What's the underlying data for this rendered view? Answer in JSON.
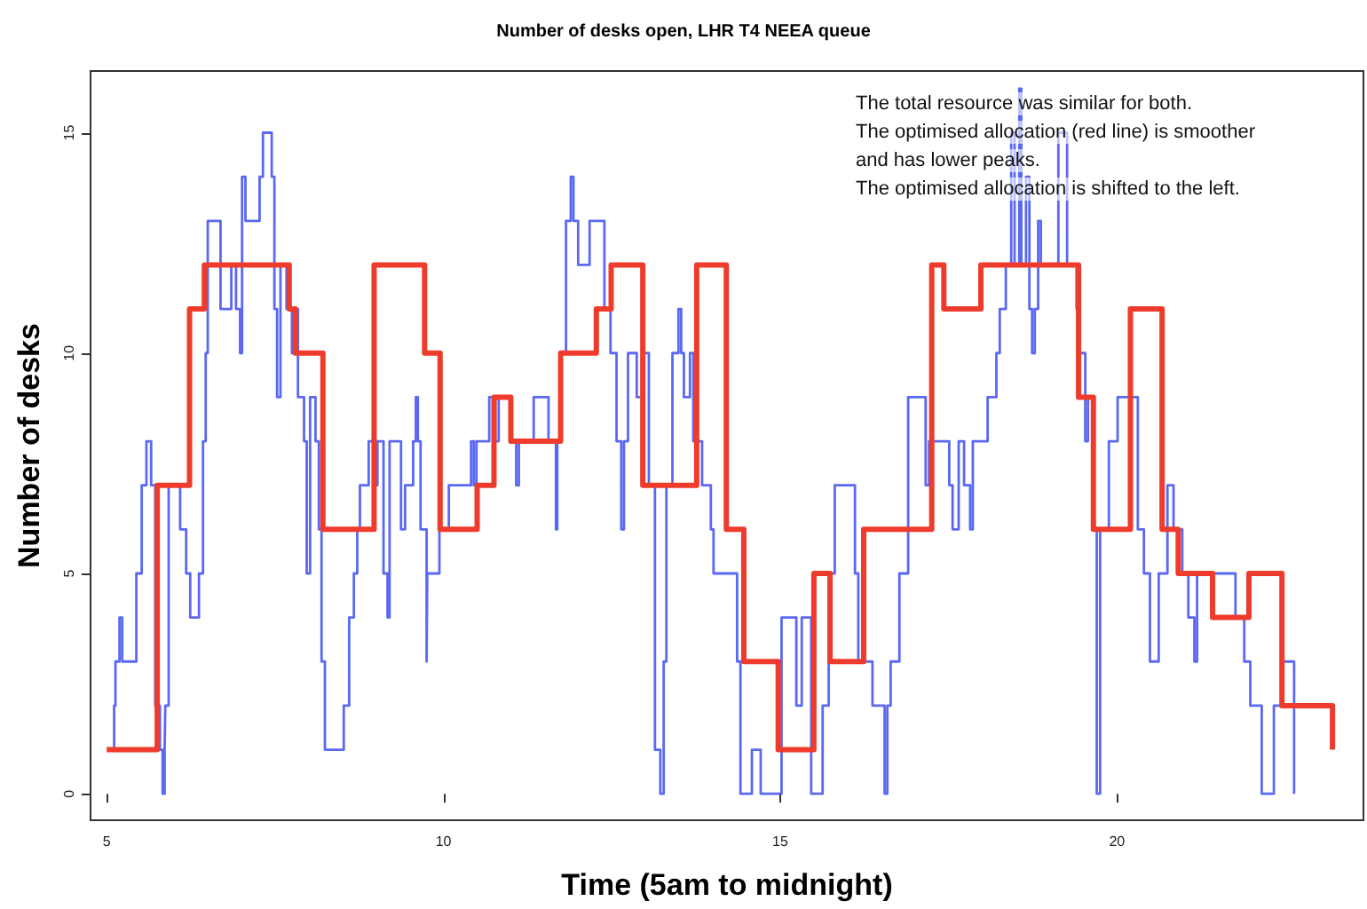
{
  "chart_data": {
    "type": "step",
    "title": "Number of desks open, LHR T4 NEEA queue",
    "xlabel": "Time (5am to midnight)",
    "ylabel": "Number of desks",
    "annotations": [
      "The total resource was similar for both.",
      "The optimised allocation (red line) is smoother",
      "and has lower peaks.",
      "The optimised allocation is shifted to the left."
    ],
    "xlim": [
      4.76,
      23.66
    ],
    "xticks": [
      5,
      10,
      15,
      20
    ],
    "ylim": [
      -0.6,
      16.4
    ],
    "yticks": [
      0,
      5,
      10,
      15
    ],
    "grid": false,
    "marker": "none",
    "line_style": "solid",
    "series": [
      {
        "color": "#3d4ef0",
        "x": [
          5.09,
          5.11,
          5.13,
          5.19,
          5.23,
          5.44,
          5.52,
          5.59,
          5.66,
          5.72,
          5.79,
          5.83,
          5.86,
          5.87,
          5.92,
          6.09,
          6.18,
          6.24,
          6.37,
          6.43,
          6.47,
          6.5,
          6.69,
          6.85,
          6.92,
          6.98,
          7.01,
          7.06,
          7.27,
          7.32,
          7.45,
          7.49,
          7.53,
          7.58,
          7.67,
          7.75,
          7.78,
          7.84,
          7.93,
          7.97,
          8.02,
          8.1,
          8.15,
          8.19,
          8.24,
          8.52,
          8.6,
          8.67,
          8.72,
          8.76,
          8.89,
          8.98,
          9.02,
          9.11,
          9.17,
          9.2,
          9.37,
          9.43,
          9.55,
          9.59,
          9.62,
          9.66,
          9.75,
          9.76,
          9.94,
          10.08,
          10.41,
          10.45,
          10.49,
          10.68,
          10.77,
          10.82,
          10.99,
          11.08,
          11.12,
          11.34,
          11.56,
          11.67,
          11.69,
          11.74,
          11.82,
          11.89,
          11.93,
          12.0,
          12.17,
          12.39,
          12.48,
          12.57,
          12.64,
          12.68,
          12.74,
          12.87,
          12.96,
          13.05,
          13.14,
          13.22,
          13.27,
          13.31,
          13.4,
          13.49,
          13.53,
          13.57,
          13.66,
          13.71,
          13.84,
          13.97,
          14.01,
          14.36,
          14.41,
          14.58,
          14.71,
          15.02,
          15.24,
          15.32,
          15.46,
          15.63,
          15.72,
          15.81,
          16.11,
          16.16,
          16.37,
          16.55,
          16.59,
          16.64,
          16.77,
          16.9,
          17.16,
          17.21,
          17.51,
          17.56,
          17.65,
          17.73,
          17.82,
          17.86,
          18.08,
          18.21,
          18.26,
          18.35,
          18.43,
          18.48,
          18.55,
          18.58,
          18.65,
          18.7,
          18.74,
          18.78,
          18.83,
          18.87,
          19.13,
          19.26,
          19.4,
          19.44,
          19.53,
          19.57,
          19.66,
          19.7,
          19.75,
          19.88,
          20.01,
          20.31,
          20.4,
          20.49,
          20.62,
          20.75,
          20.84,
          20.97,
          21.06,
          21.15,
          21.19,
          21.76,
          21.89,
          21.98,
          22.15,
          22.33,
          22.46,
          22.63
        ],
        "values": [
          1,
          2,
          3,
          4,
          3,
          5,
          7,
          8,
          7,
          2,
          1,
          0,
          1,
          2,
          7,
          6,
          5,
          4,
          5,
          8,
          10,
          13,
          11,
          12,
          11,
          10,
          14,
          13,
          14,
          15,
          14,
          11,
          9,
          12,
          11,
          10,
          11,
          9,
          8,
          5,
          9,
          8,
          6,
          3,
          1,
          2,
          4,
          5,
          6,
          7,
          8,
          7,
          8,
          5,
          4,
          8,
          6,
          7,
          8,
          9,
          8,
          6,
          3,
          5,
          6,
          7,
          8,
          7,
          8,
          9,
          8,
          9,
          8,
          7,
          8,
          9,
          8,
          6,
          8,
          10,
          13,
          14,
          13,
          12,
          13,
          11,
          10,
          8,
          6,
          8,
          10,
          9,
          10,
          7,
          1,
          0,
          3,
          7,
          10,
          11,
          10,
          9,
          10,
          8,
          7,
          6,
          5,
          3,
          0,
          1,
          0,
          4,
          2,
          4,
          0,
          2,
          5,
          7,
          5,
          3,
          2,
          0,
          2,
          3,
          5,
          9,
          7,
          8,
          7,
          6,
          8,
          7,
          6,
          8,
          9,
          10,
          11,
          12,
          15,
          12,
          16,
          12,
          14,
          11,
          10,
          11,
          13,
          12,
          15,
          12,
          11,
          10,
          8,
          9,
          6,
          0,
          6,
          8,
          9,
          6,
          5,
          3,
          5,
          7,
          6,
          5,
          4,
          3,
          5,
          4,
          3,
          2,
          0,
          2,
          3,
          0
        ]
      },
      {
        "color": "#ee3b2b",
        "x": [
          5,
          5.75,
          6.23,
          6.45,
          7.71,
          7.8,
          8.21,
          8.97,
          9.72,
          9.95,
          10.5,
          10.75,
          11.0,
          11.74,
          12.27,
          12.49,
          12.96,
          13.76,
          14.2,
          14.46,
          14.97,
          15.5,
          15.74,
          16.24,
          17.25,
          17.43,
          17.98,
          19.43,
          19.65,
          20.2,
          20.67,
          20.91,
          21.42,
          21.96,
          22.45,
          23.2
        ],
        "values": [
          1,
          7,
          11,
          12,
          11,
          10,
          6,
          12,
          10,
          6,
          7,
          9,
          8,
          10,
          11,
          12,
          7,
          12,
          6,
          3,
          1,
          5,
          3,
          6,
          12,
          11,
          12,
          9,
          6,
          11,
          6,
          5,
          4,
          5,
          2,
          1
        ]
      }
    ]
  }
}
